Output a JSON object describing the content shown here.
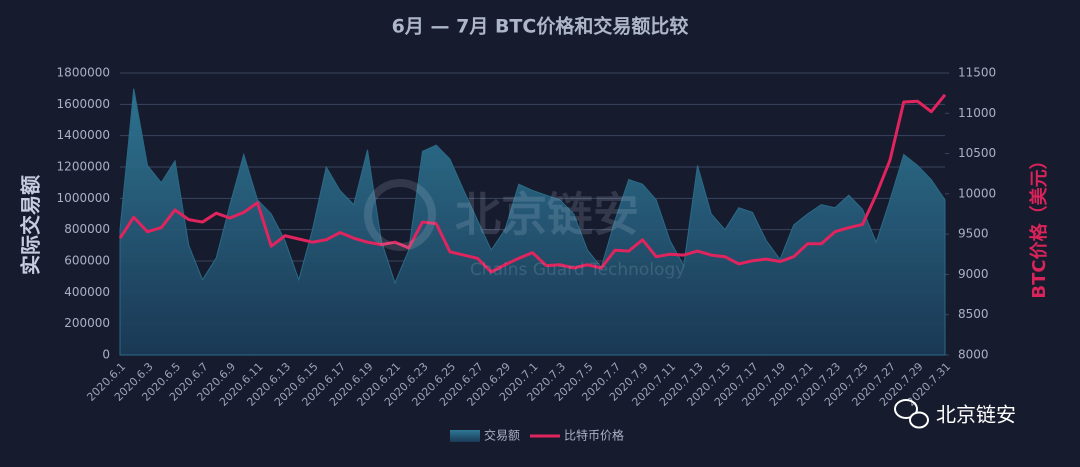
{
  "chart_data": {
    "type": "area-line",
    "title": "6月 — 7月 BTC价格和交易额比较",
    "y_label": "实际交易额",
    "y2_label": "BTC价格（美元）",
    "categories": [
      "2020.6.1",
      null,
      "2020.6.3",
      null,
      "2020.6.5",
      null,
      "2020.6.7",
      null,
      "2020.6.9",
      null,
      "2020.6.11",
      null,
      "2020.6.13",
      null,
      "2020.6.15",
      null,
      "2020.6.17",
      null,
      "2020.6.19",
      null,
      "2020.6.21",
      null,
      "2020.6.23",
      null,
      "2020.6.25",
      null,
      "2020.6.27",
      null,
      "2020.6.29",
      null,
      "2020.7.1",
      null,
      "2020.7.3",
      null,
      "2020.7.5",
      null,
      "2020.7.7",
      null,
      "2020.7.9",
      null,
      "2020.7.11",
      null,
      "2020.7.13",
      null,
      "2020.7.15",
      null,
      "2020.7.17",
      null,
      "2020.7.19",
      null,
      "2020.7.21",
      null,
      "2020.7.23",
      null,
      "2020.7.25",
      null,
      "2020.7.27",
      null,
      "2020.7.29",
      null,
      "2020.7.31"
    ],
    "series": [
      {
        "name": "交易额",
        "type": "area",
        "color": "#2b6f8c",
        "axis": "y",
        "values": [
          800000,
          1700000,
          1210000,
          1100000,
          1240000,
          700000,
          480000,
          620000,
          960000,
          1280000,
          990000,
          900000,
          730000,
          480000,
          800000,
          1200000,
          1050000,
          960000,
          1310000,
          730000,
          460000,
          670000,
          1300000,
          1340000,
          1250000,
          1050000,
          860000,
          670000,
          800000,
          1090000,
          1050000,
          1020000,
          990000,
          900000,
          670000,
          560000,
          860000,
          1120000,
          1090000,
          990000,
          730000,
          570000,
          1210000,
          900000,
          800000,
          940000,
          910000,
          730000,
          610000,
          830000,
          900000,
          960000,
          940000,
          1020000,
          930000,
          720000,
          990000,
          1280000,
          1210000,
          1120000,
          990000
        ]
      },
      {
        "name": "比特币价格",
        "type": "line",
        "color": "#e0245e",
        "axis": "y2",
        "values": [
          9450,
          9710,
          9530,
          9580,
          9800,
          9680,
          9650,
          9760,
          9700,
          9770,
          9890,
          9350,
          9480,
          9440,
          9400,
          9430,
          9520,
          9450,
          9400,
          9370,
          9400,
          9330,
          9650,
          9630,
          9280,
          9240,
          9200,
          9030,
          9120,
          9200,
          9270,
          9110,
          9120,
          9080,
          9120,
          9080,
          9300,
          9290,
          9430,
          9220,
          9250,
          9240,
          9290,
          9240,
          9220,
          9130,
          9170,
          9190,
          9160,
          9220,
          9380,
          9380,
          9530,
          9580,
          9620,
          9990,
          10420,
          11140,
          11150,
          11020,
          11230
        ]
      }
    ],
    "ylim": [
      0,
      1800000
    ],
    "yticks": [
      0,
      200000,
      400000,
      600000,
      800000,
      1000000,
      1200000,
      1400000,
      1600000,
      1800000
    ],
    "y2lim": [
      8000,
      11500
    ],
    "y2ticks": [
      8000,
      8500,
      9000,
      9500,
      10000,
      10500,
      11000,
      11500
    ],
    "grid": true,
    "legend": "bottom",
    "watermark": "北京链安",
    "watermark_sub": "Chains Guard Technology",
    "brand": "北京链安"
  }
}
